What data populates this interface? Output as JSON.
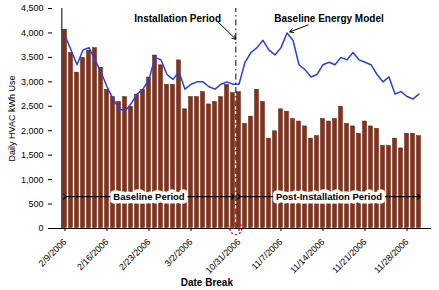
{
  "chart_data": {
    "type": "bar",
    "y_label": "Daily HVAC kWh Use",
    "categories": [
      "2/9/2006",
      null,
      null,
      null,
      null,
      null,
      null,
      "2/16/2006",
      null,
      null,
      null,
      null,
      null,
      null,
      "2/23/2006",
      null,
      null,
      null,
      null,
      null,
      null,
      "3/2/2006",
      null,
      null,
      null,
      null,
      null,
      null,
      null,
      "10/31/2006",
      null,
      null,
      null,
      null,
      null,
      null,
      "11/7/2006",
      null,
      null,
      null,
      null,
      null,
      null,
      "11/14/2006",
      null,
      null,
      null,
      null,
      null,
      null,
      "11/21/2006",
      null,
      null,
      null,
      null,
      null,
      null,
      "11/28/2006",
      null,
      null
    ],
    "series": [
      {
        "type": "bar",
        "color": "#8b2e12",
        "values": [
          4080,
          3600,
          3200,
          3500,
          3650,
          3700,
          3300,
          2850,
          2700,
          2600,
          2700,
          2500,
          2750,
          2850,
          3100,
          3550,
          3350,
          2950,
          2950,
          3450,
          2450,
          2700,
          2700,
          2800,
          2550,
          2600,
          2700,
          2950,
          2780,
          2800,
          2150,
          2300,
          2850,
          2600,
          1850,
          2000,
          2450,
          2400,
          2250,
          2200,
          2100,
          1850,
          1900,
          2250,
          2200,
          2250,
          2500,
          2150,
          2100,
          1950,
          2200,
          2100,
          2050,
          1700,
          1700,
          1850,
          1650,
          1950,
          1950,
          1900
        ]
      },
      {
        "name": "Baseline Energy Model",
        "type": "line",
        "color": "#2b3fd6",
        "values": [
          3950,
          3650,
          3350,
          3650,
          3700,
          3450,
          3200,
          2900,
          2650,
          2450,
          2400,
          2550,
          2750,
          2850,
          3050,
          3500,
          3450,
          3150,
          3050,
          3200,
          2850,
          2950,
          3000,
          3000,
          2900,
          2850,
          2950,
          3000,
          2950,
          2950,
          3400,
          3600,
          3700,
          3850,
          3650,
          3550,
          3700,
          4000,
          3850,
          3350,
          3250,
          3100,
          3150,
          3350,
          3400,
          3350,
          3500,
          3450,
          3600,
          3450,
          3400,
          3350,
          3150,
          3000,
          3100,
          2750,
          2800,
          2700,
          2650,
          2750
        ]
      }
    ],
    "ylim": [
      0,
      4500
    ],
    "yticks": [
      0,
      500,
      {
        "value": 1000,
        "label": "1,000"
      },
      {
        "value": 1500,
        "label": "1,500"
      },
      {
        "value": 2000,
        "label": "2,000"
      },
      {
        "value": 2500,
        "label": "2,500"
      },
      {
        "value": 3000,
        "label": "3,000"
      },
      {
        "value": 3500,
        "label": "3,500"
      },
      {
        "value": 4000,
        "label": "4,000"
      },
      {
        "value": 4500,
        "label": "4,500"
      }
    ],
    "grid": false,
    "annotations": [
      "Installation Period",
      "Baseline Period",
      "Post-Installation Period",
      "Date Break"
    ]
  }
}
